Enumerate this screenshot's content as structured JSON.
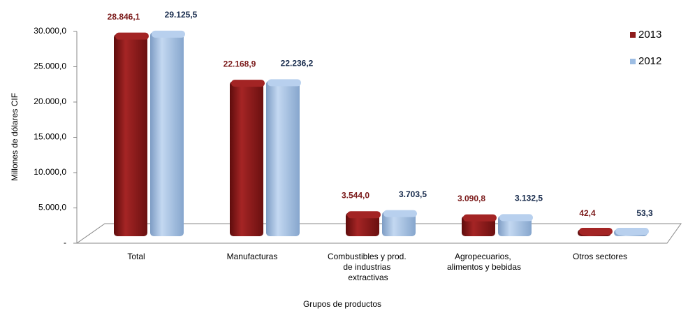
{
  "chart_data": {
    "type": "bar",
    "x_label": "Grupos de productos",
    "y_label": "Millones de dólares CIF",
    "categories": [
      "Total",
      "Manufacturas",
      "Combustibles y prod. de industrias extractivas",
      "Agropecuarios, alimentos y bebidas",
      "Otros sectores"
    ],
    "series": [
      {
        "name": "2013",
        "color": "#8e1b1b",
        "label_color": "#7a1818",
        "values": [
          28846.1,
          22168.9,
          3544.0,
          3090.8,
          42.4
        ],
        "value_labels": [
          "28.846,1",
          "22.168,9",
          "3.544,0",
          "3.090,8",
          "42,4"
        ]
      },
      {
        "name": "2012",
        "color": "#9dbde3",
        "label_color": "#14284a",
        "values": [
          29125.5,
          22236.2,
          3703.5,
          3132.5,
          53.3
        ],
        "value_labels": [
          "29.125,5",
          "22.236,2",
          "3.703,5",
          "3.132,5",
          "53,3"
        ]
      }
    ],
    "ylim": [
      0,
      30000
    ],
    "yticks": [
      {
        "value": 0,
        "label": "-"
      },
      {
        "value": 5000,
        "label": "5.000,0"
      },
      {
        "value": 10000,
        "label": "10.000,0"
      },
      {
        "value": 15000,
        "label": "15.000,0"
      },
      {
        "value": 20000,
        "label": "20.000,0"
      },
      {
        "value": 25000,
        "label": "25.000,0"
      },
      {
        "value": 30000,
        "label": "30.000,0"
      }
    ],
    "legend": "top-right"
  }
}
